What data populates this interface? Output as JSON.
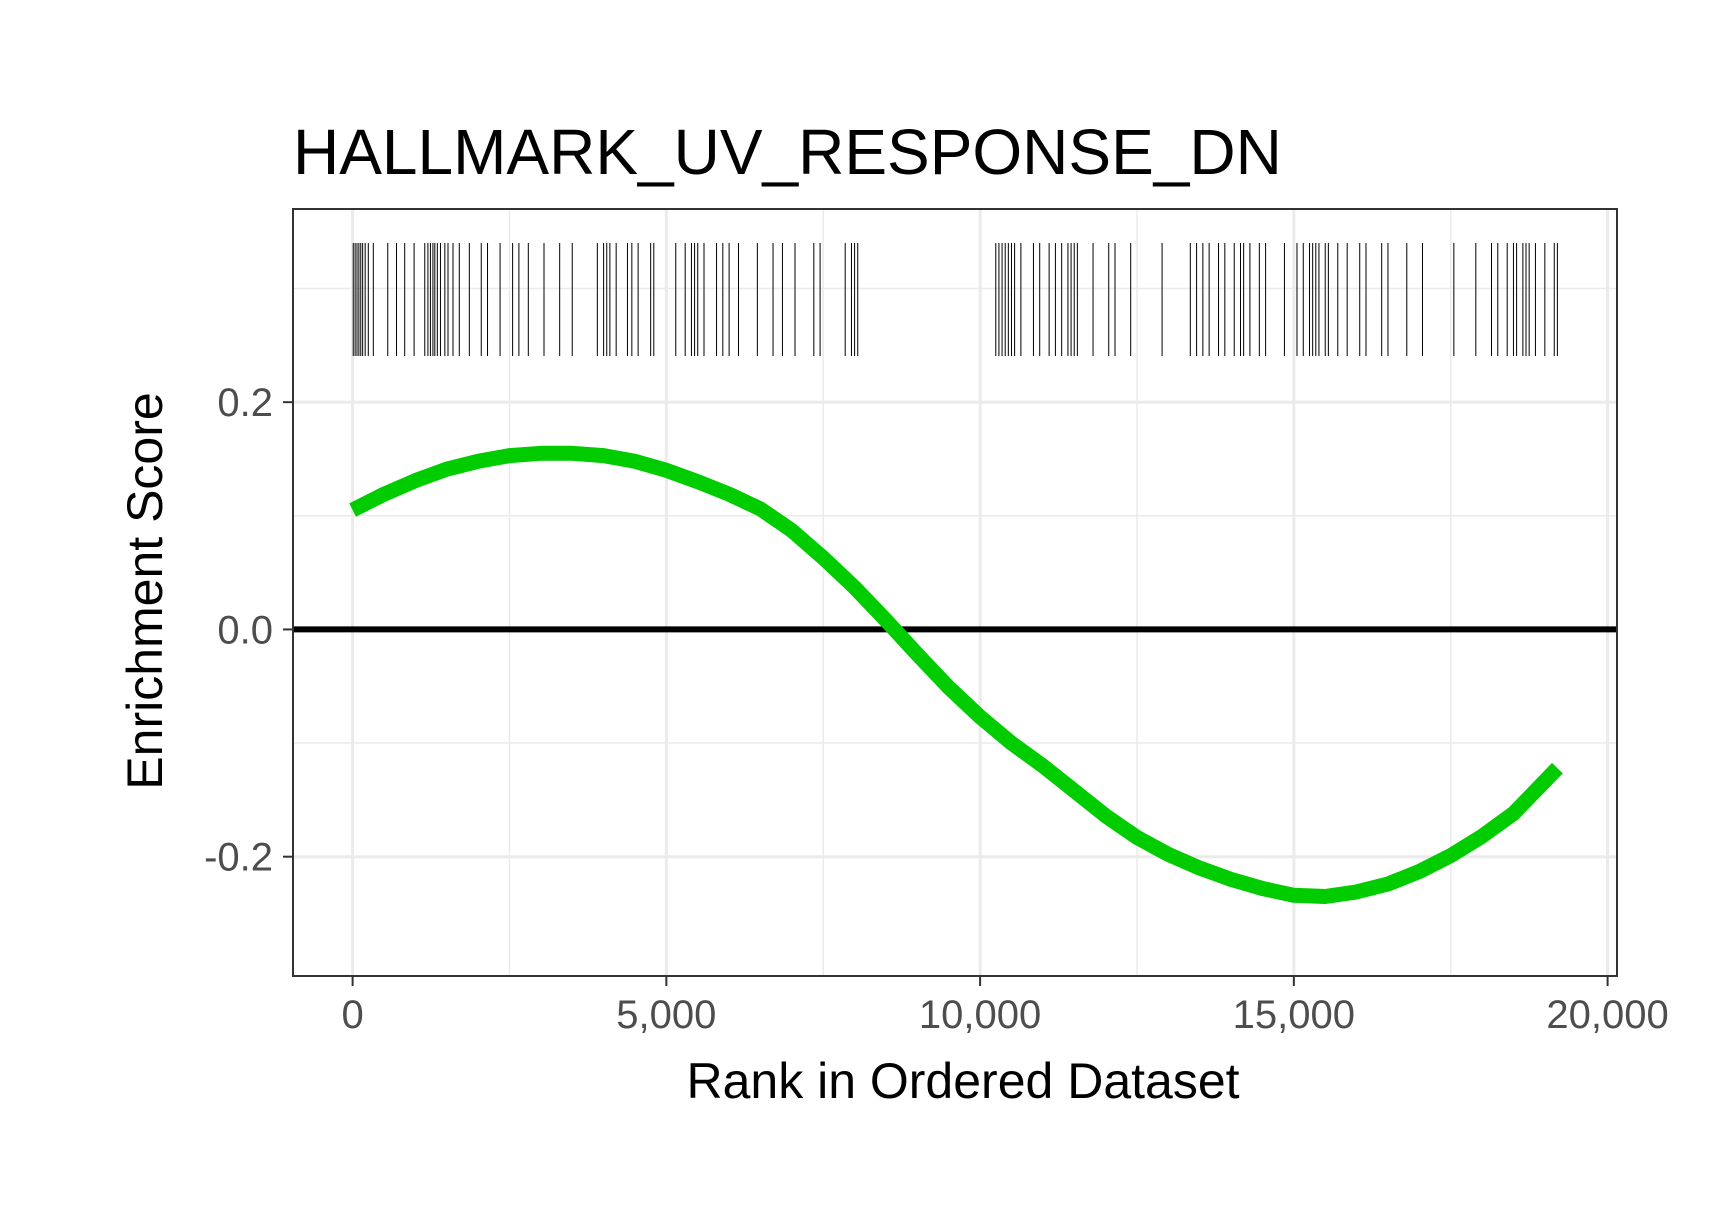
{
  "chart_data": {
    "type": "line",
    "title": "HALLMARK_UV_RESPONSE_DN",
    "xlabel": "Rank in Ordered Dataset",
    "ylabel": "Enrichment Score",
    "xlim": [
      -950,
      20150
    ],
    "ylim": [
      -0.305,
      0.37
    ],
    "x_ticks": [
      0,
      5000,
      10000,
      15000,
      20000
    ],
    "x_tick_labels": [
      "0",
      "5,000",
      "10,000",
      "15,000",
      "20,000"
    ],
    "y_ticks": [
      -0.2,
      0.0,
      0.2
    ],
    "y_tick_labels": [
      "-0.2",
      "0.0",
      "0.2"
    ],
    "grid": true,
    "zero_line": 0,
    "series": [
      {
        "color": "#00cc00",
        "x": [
          0,
          500,
          1000,
          1500,
          2000,
          2500,
          3000,
          3500,
          4000,
          4500,
          5000,
          5500,
          6000,
          6500,
          7000,
          7500,
          8000,
          8500,
          9000,
          9500,
          10000,
          10500,
          11000,
          11500,
          12000,
          12500,
          13000,
          13500,
          14000,
          14500,
          15000,
          15500,
          16000,
          16500,
          17000,
          17500,
          18000,
          18500,
          19200
        ],
        "y": [
          0.105,
          0.119,
          0.131,
          0.141,
          0.148,
          0.153,
          0.155,
          0.155,
          0.153,
          0.148,
          0.14,
          0.13,
          0.119,
          0.106,
          0.087,
          0.063,
          0.037,
          0.008,
          -0.022,
          -0.051,
          -0.077,
          -0.1,
          -0.12,
          -0.142,
          -0.164,
          -0.183,
          -0.198,
          -0.21,
          -0.22,
          -0.228,
          -0.234,
          -0.235,
          -0.231,
          -0.224,
          -0.213,
          -0.199,
          -0.182,
          -0.162,
          -0.122
        ]
      }
    ],
    "rug_hits": [
      10,
      40,
      70,
      100,
      130,
      160,
      200,
      250,
      330,
      560,
      700,
      830,
      980,
      1150,
      1200,
      1240,
      1280,
      1310,
      1350,
      1400,
      1470,
      1520,
      1600,
      1700,
      1860,
      2050,
      2150,
      2350,
      2550,
      2650,
      2800,
      3050,
      3300,
      3500,
      3900,
      4000,
      4050,
      4100,
      4200,
      4380,
      4450,
      4550,
      4750,
      4800,
      5150,
      5300,
      5400,
      5450,
      5500,
      5600,
      5800,
      5900,
      6000,
      6150,
      6450,
      6700,
      6850,
      7050,
      7350,
      7450,
      7850,
      7950,
      8000,
      8050,
      10250,
      10300,
      10350,
      10400,
      10450,
      10500,
      10550,
      10650,
      10850,
      10950,
      11100,
      11200,
      11300,
      11400,
      11450,
      11500,
      11550,
      11800,
      12050,
      12150,
      12400,
      12900,
      13350,
      13450,
      13550,
      13650,
      13800,
      13900,
      14050,
      14150,
      14200,
      14300,
      14450,
      14550,
      14850,
      15050,
      15150,
      15250,
      15300,
      15350,
      15400,
      15500,
      15550,
      15700,
      15850,
      16050,
      16150,
      16400,
      16500,
      16800,
      17050,
      17550,
      17900,
      18150,
      18250,
      18400,
      18500,
      18550,
      18650,
      18700,
      18750,
      18850,
      19000,
      19150,
      19200
    ]
  }
}
